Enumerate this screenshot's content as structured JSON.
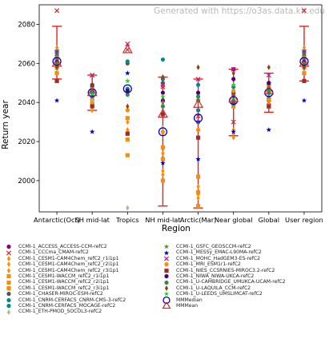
{
  "watermark": "Generated with https://o3as.data.kit.edu",
  "chart_data": {
    "type": "scatter",
    "title": "",
    "xlabel": "Region",
    "ylabel": "Return year",
    "ylim": [
      1984,
      2090
    ],
    "yticks": [
      2000,
      2020,
      2040,
      2060,
      2080
    ],
    "categories": [
      "Antarctic(Oct)",
      "SH mid-lat",
      "Tropics",
      "NH mid-lat",
      "Arctic(Mar)",
      "Near global",
      "Global",
      "User region"
    ],
    "error_bars": [
      {
        "region": "Antarctic(Oct)",
        "low": 2052,
        "high": 2079
      },
      {
        "region": "SH mid-lat",
        "low": 2036,
        "high": 2054
      },
      {
        "region": "NH mid-lat",
        "low": 1987,
        "high": 2053
      },
      {
        "region": "Arctic(Mar)",
        "low": 1986,
        "high": 2052
      },
      {
        "region": "Near global",
        "low": 2023,
        "high": 2057
      },
      {
        "region": "Global",
        "low": 2035,
        "high": 2055
      },
      {
        "region": "User region",
        "low": 2051,
        "high": 2079
      }
    ],
    "series": [
      {
        "name": "CCMI-1_ACCESS_ACCESS-CCM-refC2",
        "color": "#800080",
        "marker": "circle",
        "values": [
          2059,
          2043,
          null,
          2041,
          2030,
          2057,
          2042,
          2059
        ]
      },
      {
        "name": "CCMI-1_CCCma_CMAM-refC2",
        "color": "#d62728",
        "marker": "x",
        "values": [
          2087,
          2054,
          2067,
          2048,
          2033,
          2030,
          2040,
          2087
        ]
      },
      {
        "name": "CCMI-1_CESM1-CAM4Chem_refC2_r1i1p1",
        "color": "#ff8c00",
        "marker": "diamond",
        "values": [
          2068,
          2044,
          2030,
          2014,
          1997,
          2026,
          2046,
          2068
        ]
      },
      {
        "name": "CCMI-1_CESM1-CAM4Chem_refC2_r2i1p1",
        "color": "#ff8c00",
        "marker": "diamond",
        "values": [
          2062,
          2040,
          2025,
          2003,
          1993,
          2024,
          2044,
          2062
        ]
      },
      {
        "name": "CCMI-1_CESM1-CAM4Chem_refC2_r3i1p1",
        "color": "#ff8c00",
        "marker": "diamond",
        "values": [
          2057,
          2036,
          2026,
          2005,
          1991,
          2022,
          2040,
          2057
        ]
      },
      {
        "name": "CCMI-1_CESM1-WACCM_refC2_r1i1p1",
        "color": "#ff8c00",
        "marker": "square",
        "values": [
          2062,
          2045,
          2032,
          2017,
          2002,
          2044,
          2047,
          2062
        ]
      },
      {
        "name": "CCMI-1_CESM1-WACCM_refC2_r2i1p1",
        "color": "#ff8c00",
        "marker": "square",
        "values": [
          2058,
          2041,
          2021,
          2011,
          1994,
          2040,
          2042,
          2058
        ]
      },
      {
        "name": "CCMI-1_CESM1-WACCM_refC2_r3i1p1",
        "color": "#ff8c00",
        "marker": "square",
        "values": [
          2055,
          2039,
          2013,
          2000,
          1987,
          2038,
          2038,
          2055
        ]
      },
      {
        "name": "CCMI-1_CHASER-MIROC-ESM-refC2",
        "color": "#555555",
        "marker": "circle",
        "values": [
          2064,
          2048,
          2060,
          2050,
          2041,
          2045,
          2050,
          2064
        ]
      },
      {
        "name": "CCMI-1_CNRM-CERFACS_CNRM-CM5-3-refC2",
        "color": "#008b8b",
        "marker": "circle",
        "values": [
          2066,
          2046,
          2061,
          2052,
          2049,
          2048,
          2049,
          2066
        ]
      },
      {
        "name": "CCMI-1_CNRM-CERFACS_MOCAGE-refC2",
        "color": "#008b8b",
        "marker": "circle",
        "values": [
          2063,
          2045,
          2047,
          2062,
          2036,
          2043,
          2046,
          2063
        ]
      },
      {
        "name": "CCMI-1_ETH-PMOD_SOCOL3-refC2",
        "color": "#b5b58a",
        "marker": "diamond",
        "values": [
          2057,
          2041,
          1986,
          2027,
          2044,
          2041,
          2044,
          2057
        ]
      },
      {
        "name": "CCMI-1_GSFC_GEOSCCM-refC2",
        "color": "#6b8e23",
        "marker": "star",
        "values": [
          2061,
          2043,
          2036,
          2040,
          2030,
          2039,
          2043,
          2061
        ]
      },
      {
        "name": "CCMI-1_MESSy_EMAC-L90MA-refC2",
        "color": "#0000cd",
        "marker": "star",
        "values": [
          2041,
          2025,
          2055,
          2009,
          2011,
          2025,
          2026,
          2041
        ]
      },
      {
        "name": "CCMI-1_MOHC_HadGEM3-ES-refC2",
        "color": "#c71585",
        "marker": "x",
        "values": [
          2066,
          2054,
          2070,
          2049,
          2052,
          2057,
          2054,
          2066
        ]
      },
      {
        "name": "CCMI-1_MRI_ESM1r1-refC2",
        "color": "#ff8c00",
        "marker": "circle",
        "values": [
          2063,
          2047,
          2036,
          2025,
          2026,
          2046,
          2048,
          2063
        ]
      },
      {
        "name": "CCMI-1_NIES_CCSRNIES-MIROC3.2-refC2",
        "color": "#a52a2a",
        "marker": "square",
        "values": [
          2051,
          2038,
          2024,
          2034,
          2022,
          2040,
          2038,
          2051
        ]
      },
      {
        "name": "CCMI-1_NIWA_NIWA-UKCA-refC2",
        "color": "#4b0082",
        "marker": "circle",
        "values": [
          2061,
          2049,
          2046,
          2045,
          2045,
          2052,
          2050,
          2061
        ]
      },
      {
        "name": "CCMI-1_U-CAMBRIDGE_UMUKCA-UCAM-refC2",
        "color": "#2e8b57",
        "marker": "circle",
        "values": [
          2060,
          2046,
          2044,
          2038,
          2043,
          2041,
          2045,
          2060
        ]
      },
      {
        "name": "CCMI-1_U-LAQUILA_CCM-refC2",
        "color": "#8b4513",
        "marker": "diamond",
        "values": [
          2058,
          2049,
          2038,
          2053,
          2058,
          2055,
          2058,
          2058
        ]
      },
      {
        "name": "CCMI-1_U-LEEDS_UMSLIMCAT-refC2",
        "color": "#32cd32",
        "marker": "star",
        "values": [
          2063,
          2044,
          2051,
          2043,
          2041,
          2049,
          2047,
          2063
        ]
      },
      {
        "name": "MMMedian",
        "color": "#0000cd",
        "marker": "open-circle",
        "values": [
          2061,
          2045,
          2047,
          2025,
          2032,
          2041,
          2045,
          2061
        ]
      },
      {
        "name": "MMMean",
        "color": "#d62728",
        "marker": "open-triangle",
        "values": [
          2060,
          2045,
          2067,
          2034,
          2039,
          2042,
          2046,
          2060
        ]
      }
    ]
  }
}
